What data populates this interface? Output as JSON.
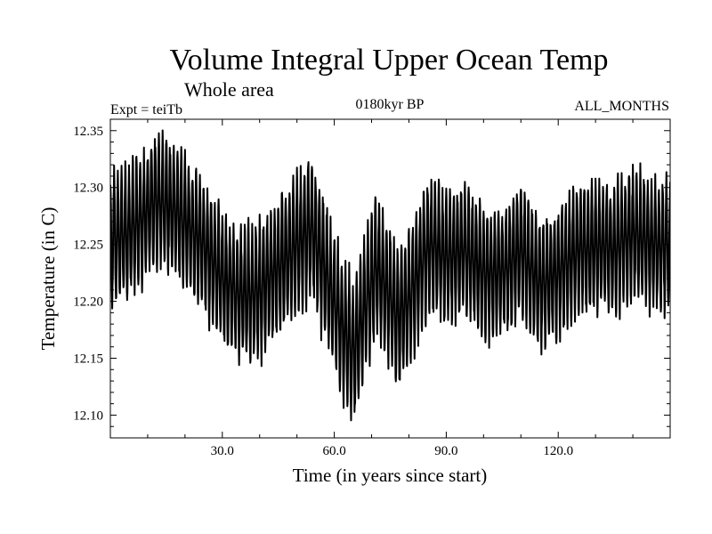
{
  "chart_data": {
    "type": "line",
    "title": "Volume Integral Upper Ocean Temp",
    "subtitle": "Whole area",
    "experiment_label": "Expt = teiTb",
    "period_label": "0180kyr BP",
    "months_label": "ALL_MONTHS",
    "xlabel": "Time (in years since start)",
    "ylabel": "Temperature (in C)",
    "xlim": [
      0,
      150
    ],
    "ylim": [
      12.08,
      12.36
    ],
    "x_ticks": [
      30,
      60,
      90,
      120
    ],
    "x_tick_labels": [
      "30.0",
      "60.0",
      "90.0",
      "120.0"
    ],
    "y_ticks": [
      12.1,
      12.15,
      12.2,
      12.25,
      12.3,
      12.35
    ],
    "y_tick_labels": [
      "12.10",
      "12.15",
      "12.20",
      "12.25",
      "12.30",
      "12.35"
    ],
    "grid": false,
    "sampling": "monthly (seasonal cycle)",
    "series": [
      {
        "name": "Volume integral upper ocean temperature",
        "color": "#000000",
        "annual_mean": [
          {
            "x": 0,
            "y": 12.255
          },
          {
            "x": 5,
            "y": 12.26
          },
          {
            "x": 10,
            "y": 12.28
          },
          {
            "x": 13,
            "y": 12.29
          },
          {
            "x": 17,
            "y": 12.28
          },
          {
            "x": 20,
            "y": 12.27
          },
          {
            "x": 25,
            "y": 12.25
          },
          {
            "x": 30,
            "y": 12.22
          },
          {
            "x": 35,
            "y": 12.205
          },
          {
            "x": 40,
            "y": 12.21
          },
          {
            "x": 45,
            "y": 12.23
          },
          {
            "x": 50,
            "y": 12.25
          },
          {
            "x": 54,
            "y": 12.265
          },
          {
            "x": 58,
            "y": 12.22
          },
          {
            "x": 62,
            "y": 12.18
          },
          {
            "x": 65,
            "y": 12.155
          },
          {
            "x": 68,
            "y": 12.19
          },
          {
            "x": 71,
            "y": 12.23
          },
          {
            "x": 74,
            "y": 12.21
          },
          {
            "x": 77,
            "y": 12.185
          },
          {
            "x": 80,
            "y": 12.2
          },
          {
            "x": 85,
            "y": 12.25
          },
          {
            "x": 90,
            "y": 12.24
          },
          {
            "x": 95,
            "y": 12.245
          },
          {
            "x": 100,
            "y": 12.225
          },
          {
            "x": 105,
            "y": 12.225
          },
          {
            "x": 110,
            "y": 12.245
          },
          {
            "x": 115,
            "y": 12.215
          },
          {
            "x": 120,
            "y": 12.225
          },
          {
            "x": 125,
            "y": 12.245
          },
          {
            "x": 130,
            "y": 12.25
          },
          {
            "x": 135,
            "y": 12.245
          },
          {
            "x": 140,
            "y": 12.26
          },
          {
            "x": 145,
            "y": 12.25
          },
          {
            "x": 150,
            "y": 12.25
          }
        ],
        "seasonal_amplitude": [
          {
            "x": 0,
            "y": 0.055
          },
          {
            "x": 20,
            "y": 0.055
          },
          {
            "x": 60,
            "y": 0.06
          },
          {
            "x": 100,
            "y": 0.055
          },
          {
            "x": 150,
            "y": 0.055
          }
        ]
      }
    ]
  }
}
